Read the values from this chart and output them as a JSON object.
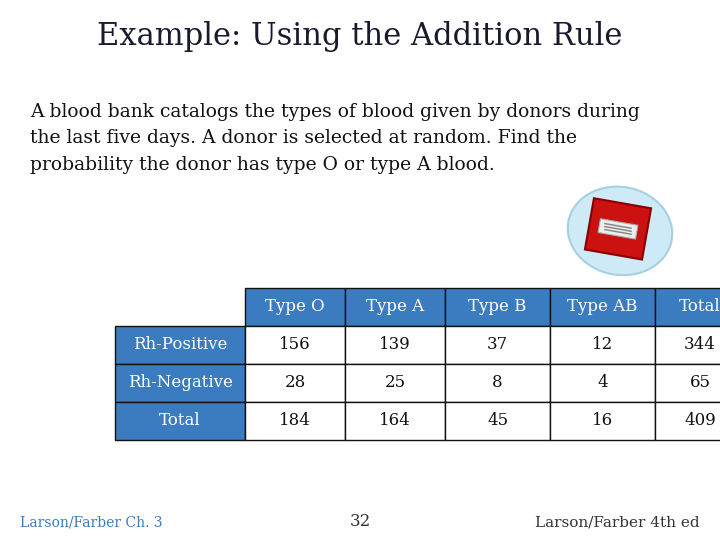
{
  "title": "Example: Using the Addition Rule",
  "title_bg_color": "#7EB0E8",
  "title_text_color": "#1a1a2e",
  "body_bg_color": "#FFFFFF",
  "body_text_color": "#111111",
  "paragraph": "A blood bank catalogs the types of blood given by donors during\nthe last five days. A donor is selected at random. Find the\nprobability the donor has type O or type A blood.",
  "table_header": [
    "",
    "Type O",
    "Type A",
    "Type B",
    "Type AB",
    "Total"
  ],
  "table_rows": [
    [
      "Rh-Positive",
      "156",
      "139",
      "37",
      "12",
      "344"
    ],
    [
      "Rh-Negative",
      "28",
      "25",
      "8",
      "4",
      "65"
    ],
    [
      "Total",
      "184",
      "164",
      "45",
      "16",
      "409"
    ]
  ],
  "header_bg_color": "#3B7BC0",
  "header_text_color": "#FFFFFF",
  "row_label_bg_color": "#3B7BC0",
  "row_label_text_color": "#FFFFFF",
  "row_data_bg_color": "#FFFFFF",
  "row_data_text_color": "#111111",
  "table_border_color": "#111111",
  "footer_left": "Larson/Farber Ch. 3",
  "footer_center": "32",
  "footer_right": "Larson/Farber 4th ed",
  "footer_text_color": "#333333",
  "icon_blob_color": "#c8e8f5",
  "icon_bag_color": "#cc1111",
  "icon_label_color": "#eeeeee"
}
